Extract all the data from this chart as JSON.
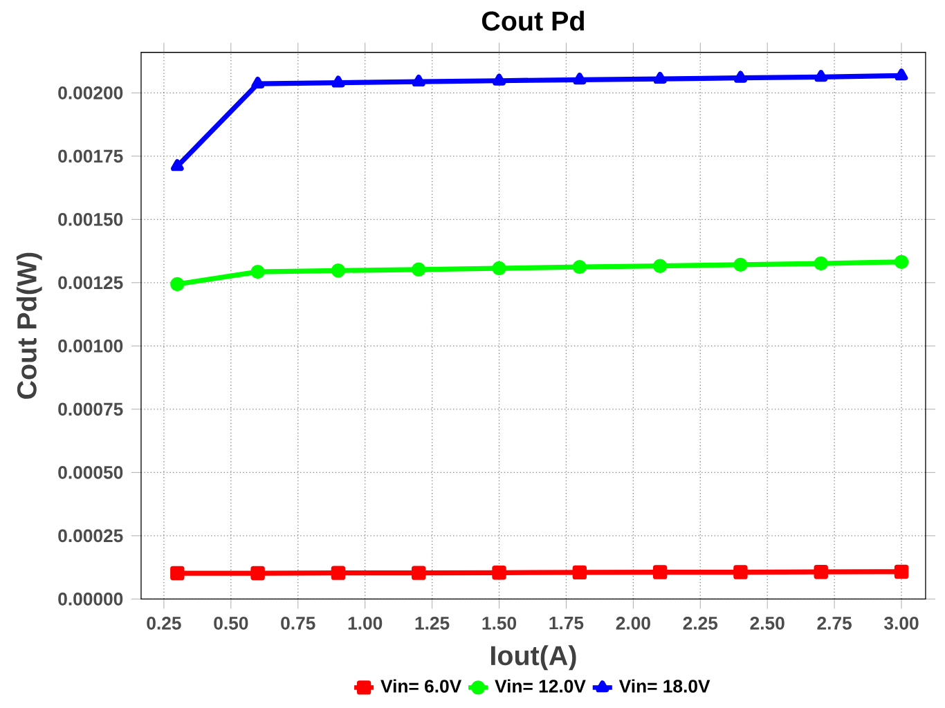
{
  "chart_data": {
    "type": "line",
    "title": "Cout Pd",
    "xlabel": "Iout(A)",
    "ylabel": "Cout Pd(W)",
    "x": [
      0.3,
      0.6,
      0.9,
      1.2,
      1.5,
      1.8,
      2.1,
      2.4,
      2.7,
      3.0
    ],
    "series": [
      {
        "name": "Vin= 6.0V",
        "color": "#ff0000",
        "marker": "square",
        "values": [
          0.000102,
          0.000102,
          0.000103,
          0.000103,
          0.000104,
          0.000105,
          0.000106,
          0.000106,
          0.000107,
          0.000108
        ]
      },
      {
        "name": "Vin= 12.0V",
        "color": "#00ff00",
        "marker": "circle",
        "values": [
          0.001244,
          0.001293,
          0.001298,
          0.001302,
          0.001307,
          0.001312,
          0.001316,
          0.001321,
          0.001326,
          0.001332
        ]
      },
      {
        "name": "Vin= 18.0V",
        "color": "#0000ff",
        "marker": "triangle",
        "values": [
          0.00171,
          0.002036,
          0.00204,
          0.002044,
          0.002048,
          0.002052,
          0.002055,
          0.002059,
          0.002063,
          0.002068
        ]
      }
    ],
    "xlim": [
      0.165,
      3.09
    ],
    "ylim": [
      0,
      0.00216
    ],
    "xticks": [
      {
        "value": 0.25,
        "label": "0.25"
      },
      {
        "value": 0.5,
        "label": "0.50"
      },
      {
        "value": 0.75,
        "label": "0.75"
      },
      {
        "value": 1.0,
        "label": "1.00"
      },
      {
        "value": 1.25,
        "label": "1.25"
      },
      {
        "value": 1.5,
        "label": "1.50"
      },
      {
        "value": 1.75,
        "label": "1.75"
      },
      {
        "value": 2.0,
        "label": "2.00"
      },
      {
        "value": 2.25,
        "label": "2.25"
      },
      {
        "value": 2.5,
        "label": "2.50"
      },
      {
        "value": 2.75,
        "label": "2.75"
      },
      {
        "value": 3.0,
        "label": "3.00"
      }
    ],
    "yticks": [
      {
        "value": 0,
        "label": "0.00000"
      },
      {
        "value": 0.00025,
        "label": "0.00025"
      },
      {
        "value": 0.0005,
        "label": "0.00050"
      },
      {
        "value": 0.00075,
        "label": "0.00075"
      },
      {
        "value": 0.001,
        "label": "0.00100"
      },
      {
        "value": 0.00125,
        "label": "0.00125"
      },
      {
        "value": 0.0015,
        "label": "0.00150"
      },
      {
        "value": 0.00175,
        "label": "0.00175"
      },
      {
        "value": 0.002,
        "label": "0.00200"
      }
    ],
    "grid": true,
    "legend": "bottom",
    "line_style": "solid"
  }
}
